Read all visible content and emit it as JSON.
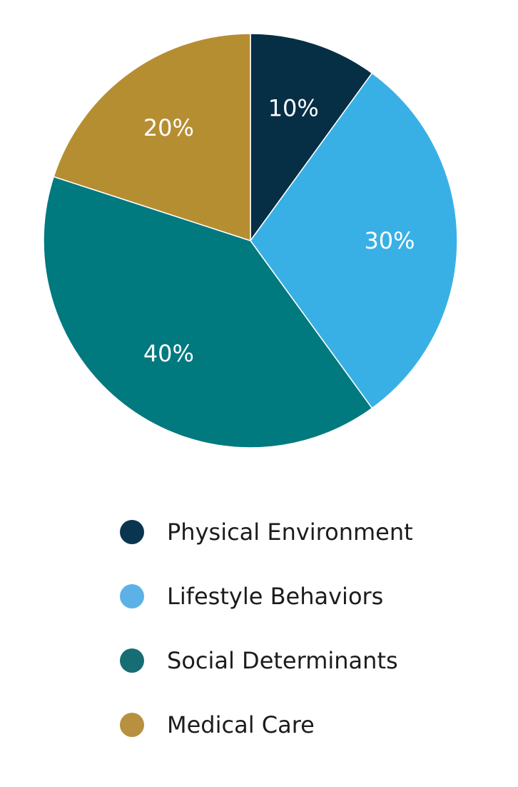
{
  "chart_data": {
    "type": "pie",
    "categories": [
      "Physical Environment",
      "Lifestyle Behaviors",
      "Social Determinants",
      "Medical Care"
    ],
    "values": [
      10,
      30,
      40,
      20
    ],
    "data_labels": [
      "10%",
      "30%",
      "40%",
      "20%"
    ],
    "slice_colors": [
      "#062f45",
      "#39b0e5",
      "#00797f",
      "#b68e32"
    ],
    "title": "",
    "start_angle": "top (12 o'clock)",
    "direction": "clockwise",
    "legend_position": "bottom"
  },
  "legend": {
    "items": [
      {
        "label": "Physical Environment",
        "color": "#0a3550"
      },
      {
        "label": "Lifestyle Behaviors",
        "color": "#5cb2e6"
      },
      {
        "label": "Social Determinants",
        "color": "#166d73"
      },
      {
        "label": "Medical Care",
        "color": "#b79040"
      }
    ]
  }
}
